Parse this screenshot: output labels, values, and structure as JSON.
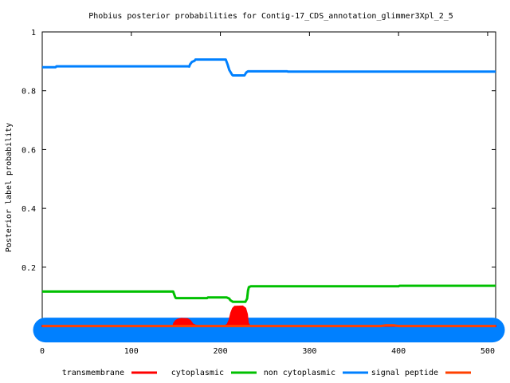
{
  "chart_data": {
    "type": "line",
    "title": "Phobius posterior probabilities for Contig-17_CDS_annotation_glimmer3Xpl_2_5",
    "xlabel": "",
    "ylabel": "Posterior label probability",
    "xlim": [
      0,
      509
    ],
    "ylim": [
      -0.05,
      1
    ],
    "x_ticks": [
      0,
      100,
      200,
      300,
      400,
      500
    ],
    "y_ticks": [
      0.2,
      0.4,
      0.6,
      0.8,
      1
    ],
    "grid": false,
    "legend_position": "bottom",
    "series": [
      {
        "name": "transmembrane",
        "color": "#ff0000",
        "style": "filled-area",
        "points": [
          [
            0,
            0
          ],
          [
            147,
            0
          ],
          [
            148,
            0.01
          ],
          [
            150,
            0.018
          ],
          [
            152,
            0.022
          ],
          [
            156,
            0.025
          ],
          [
            163,
            0.024
          ],
          [
            166,
            0.018
          ],
          [
            169,
            0.006
          ],
          [
            172,
            0.002
          ],
          [
            176,
            0
          ],
          [
            205,
            0
          ],
          [
            208,
            0.006
          ],
          [
            210,
            0.02
          ],
          [
            212,
            0.045
          ],
          [
            214,
            0.06
          ],
          [
            216,
            0.066
          ],
          [
            225,
            0.067
          ],
          [
            228,
            0.06
          ],
          [
            230,
            0.04
          ],
          [
            231,
            0.01
          ],
          [
            233,
            0
          ],
          [
            509,
            0
          ]
        ]
      },
      {
        "name": "cytoplasmic",
        "color": "#00c000",
        "points": [
          [
            0,
            0.117
          ],
          [
            147,
            0.117
          ],
          [
            149,
            0.1
          ],
          [
            150,
            0.095
          ],
          [
            185,
            0.095
          ],
          [
            186,
            0.097
          ],
          [
            207,
            0.097
          ],
          [
            210,
            0.093
          ],
          [
            211,
            0.088
          ],
          [
            214,
            0.082
          ],
          [
            228,
            0.082
          ],
          [
            230,
            0.093
          ],
          [
            231,
            0.12
          ],
          [
            232,
            0.132
          ],
          [
            234,
            0.135
          ],
          [
            400,
            0.135
          ],
          [
            401,
            0.137
          ],
          [
            509,
            0.137
          ]
        ]
      },
      {
        "name": "non cytoplasmic",
        "color": "#0080ff",
        "points": [
          [
            0,
            0.88
          ],
          [
            15,
            0.88
          ],
          [
            16,
            0.883
          ],
          [
            164,
            0.883
          ],
          [
            165,
            0.882
          ],
          [
            166,
            0.89
          ],
          [
            168,
            0.898
          ],
          [
            171,
            0.902
          ],
          [
            172,
            0.906
          ],
          [
            206,
            0.906
          ],
          [
            208,
            0.89
          ],
          [
            210,
            0.87
          ],
          [
            213,
            0.855
          ],
          [
            214,
            0.852
          ],
          [
            227,
            0.852
          ],
          [
            229,
            0.862
          ],
          [
            231,
            0.866
          ],
          [
            275,
            0.866
          ],
          [
            276,
            0.865
          ],
          [
            509,
            0.865
          ]
        ]
      },
      {
        "name": "signal peptide",
        "color": "#ff4000",
        "points": [
          [
            0,
            0
          ],
          [
            380,
            0
          ],
          [
            385,
            0.002
          ],
          [
            395,
            0.002
          ],
          [
            400,
            0
          ],
          [
            509,
            0
          ]
        ]
      }
    ]
  }
}
